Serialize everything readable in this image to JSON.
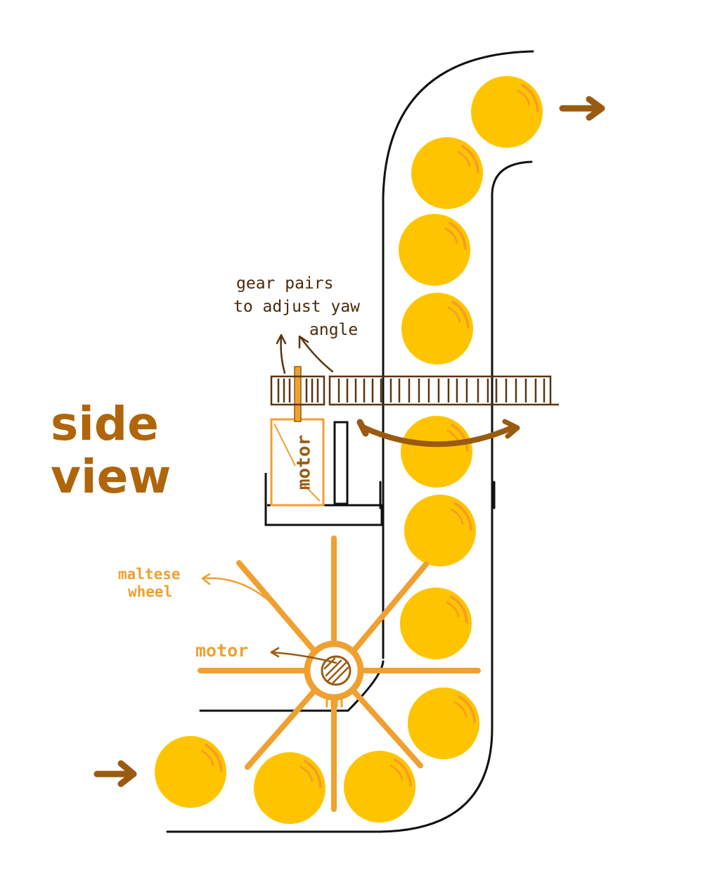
{
  "title": {
    "line1": "side",
    "line2": "view"
  },
  "labels": {
    "gear_line1": "gear pairs",
    "gear_line2": "to adjust yaw",
    "gear_line3": "angle",
    "motor_upper": "motor",
    "maltese_line1": "maltese",
    "maltese_line2": "wheel",
    "motor_lower": "motor"
  },
  "colors": {
    "ball": "#FFC400",
    "ball_highlight": "#F5A020",
    "brown": "#9A5A10",
    "dark_brown": "#4A2A0A",
    "orange": "#F0A030",
    "ink": "#111111"
  },
  "icons": {
    "input_arrow": "arrow-right-icon",
    "output_arrow": "arrow-right-icon",
    "rotation_arrow": "curved-double-arrow-icon"
  }
}
